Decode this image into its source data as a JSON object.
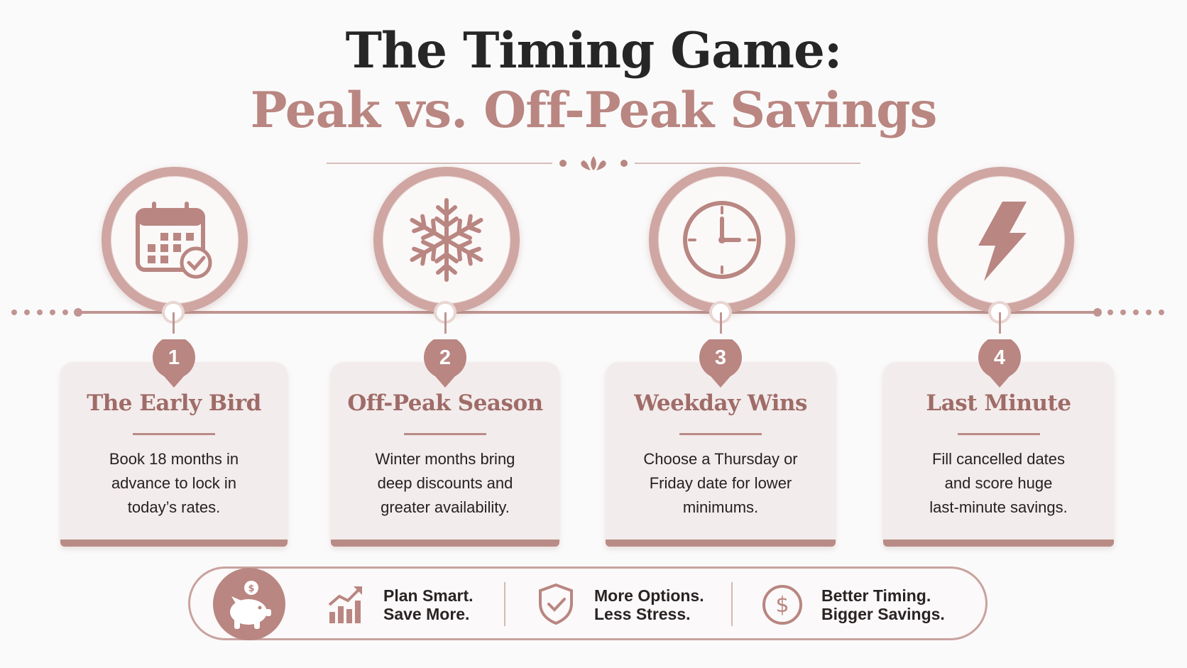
{
  "title": {
    "line1": "The Timing Game:",
    "line2": "Peak vs. Off-Peak Savings"
  },
  "colors": {
    "accent": "#b98681",
    "accent_dark": "#9f6c68",
    "text": "#262626",
    "card_bg": "#f3ecec"
  },
  "steps": [
    {
      "number": "1",
      "icon": "calendar-check-icon",
      "title": "The Early Bird",
      "lines": [
        "Book 18 months in",
        "advance to lock in",
        "today’s rates."
      ]
    },
    {
      "number": "2",
      "icon": "snowflake-icon",
      "title": "Off-Peak Season",
      "lines": [
        "Winter months bring",
        "deep discounts and",
        "greater availability."
      ]
    },
    {
      "number": "3",
      "icon": "clock-icon",
      "title": "Weekday Wins",
      "lines": [
        "Choose a Thursday or",
        "Friday date for lower",
        "minimums."
      ]
    },
    {
      "number": "4",
      "icon": "lightning-icon",
      "title": "Last Minute",
      "lines": [
        "Fill cancelled dates",
        "and score huge",
        "last-minute savings."
      ]
    }
  ],
  "footer": {
    "lead_icon": "piggy-bank-icon",
    "items": [
      {
        "icon": "growth-chart-icon",
        "line1": "Plan Smart.",
        "line2": "Save More."
      },
      {
        "icon": "shield-check-icon",
        "line1": "More Options.",
        "line2": "Less Stress."
      },
      {
        "icon": "dollar-coin-icon",
        "line1": "Better Timing.",
        "line2": "Bigger Savings."
      }
    ]
  }
}
